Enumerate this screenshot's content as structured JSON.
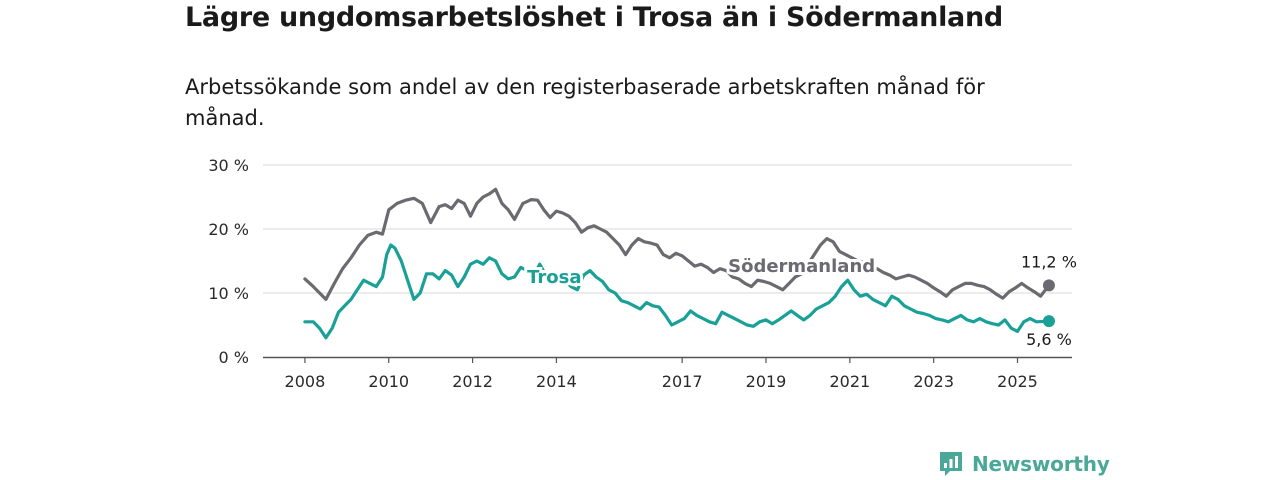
{
  "title": "Lägre ungdomsarbetslöshet i Trosa än i Södermanland",
  "subtitle": "Arbetssökande som andel av den registerbaserade arbetskraften månad för månad.",
  "brand": {
    "name": "Newsworthy",
    "color": "#4aa898"
  },
  "chart_data": {
    "type": "line",
    "title": "Lägre ungdomsarbetslöshet i Trosa än i Södermanland",
    "subtitle": "Arbetssökande som andel av den registerbaserade arbetskraften månad för månad.",
    "xlabel": "",
    "ylabel": "",
    "ylim": [
      0,
      30
    ],
    "xlim": [
      2007.0,
      2026.3
    ],
    "y_ticks": [
      0,
      10,
      20,
      30
    ],
    "y_tick_labels": [
      "0 %",
      "10 %",
      "20 %",
      "30 %"
    ],
    "x_ticks": [
      2008,
      2010,
      2012,
      2014,
      2017,
      2019,
      2021,
      2023,
      2025
    ],
    "x_tick_labels": [
      "2008",
      "2010",
      "2012",
      "2014",
      "2017",
      "2019",
      "2021",
      "2023",
      "2025"
    ],
    "grid": "horizontal",
    "legend": "inline labels",
    "series": [
      {
        "name": "Södermanland",
        "color": "#6b6a70",
        "end_label": "11,2 %",
        "x": [
          2008.0,
          2008.2,
          2008.5,
          2008.7,
          2008.9,
          2009.1,
          2009.3,
          2009.5,
          2009.7,
          2009.85,
          2010.0,
          2010.2,
          2010.4,
          2010.6,
          2010.8,
          2011.0,
          2011.2,
          2011.35,
          2011.5,
          2011.65,
          2011.8,
          2011.95,
          2012.1,
          2012.25,
          2012.4,
          2012.55,
          2012.7,
          2012.85,
          2013.0,
          2013.2,
          2013.4,
          2013.55,
          2013.7,
          2013.85,
          2014.0,
          2014.15,
          2014.3,
          2014.45,
          2014.6,
          2014.75,
          2014.9,
          2015.05,
          2015.2,
          2015.35,
          2015.5,
          2015.65,
          2015.8,
          2015.95,
          2016.1,
          2016.25,
          2016.4,
          2016.55,
          2016.7,
          2016.85,
          2017.0,
          2017.15,
          2017.3,
          2017.45,
          2017.6,
          2017.75,
          2017.9,
          2018.05,
          2018.2,
          2018.35,
          2018.5,
          2018.65,
          2018.8,
          2018.95,
          2019.1,
          2019.25,
          2019.4,
          2019.55,
          2019.7,
          2019.85,
          2020.0,
          2020.15,
          2020.3,
          2020.45,
          2020.6,
          2020.75,
          2020.9,
          2021.05,
          2021.2,
          2021.35,
          2021.5,
          2021.65,
          2021.8,
          2021.95,
          2022.1,
          2022.25,
          2022.4,
          2022.55,
          2022.7,
          2022.85,
          2023.0,
          2023.15,
          2023.3,
          2023.45,
          2023.6,
          2023.75,
          2023.9,
          2024.05,
          2024.2,
          2024.35,
          2024.5,
          2024.65,
          2024.8,
          2024.95,
          2025.1,
          2025.25,
          2025.4,
          2025.55,
          2025.75
        ],
        "y": [
          12.2,
          11.0,
          9.0,
          11.5,
          13.8,
          15.5,
          17.5,
          19.0,
          19.5,
          19.2,
          23.0,
          24.0,
          24.5,
          24.8,
          24.0,
          21.0,
          23.5,
          23.8,
          23.2,
          24.5,
          24.0,
          22.0,
          24.0,
          25.0,
          25.5,
          26.2,
          24.0,
          23.0,
          21.5,
          24.0,
          24.6,
          24.5,
          23.0,
          21.8,
          22.8,
          22.5,
          22.0,
          21.0,
          19.5,
          20.2,
          20.5,
          20.0,
          19.5,
          18.5,
          17.5,
          16.0,
          17.5,
          18.5,
          18.0,
          17.8,
          17.5,
          16.0,
          15.5,
          16.2,
          15.8,
          15.0,
          14.2,
          14.5,
          14.0,
          13.2,
          13.8,
          13.5,
          12.5,
          12.2,
          11.5,
          11.0,
          12.0,
          11.8,
          11.5,
          11.0,
          10.5,
          11.5,
          12.5,
          13.0,
          14.5,
          16.0,
          17.5,
          18.5,
          18.0,
          16.5,
          16.0,
          15.5,
          15.0,
          14.8,
          14.0,
          13.8,
          13.2,
          12.8,
          12.2,
          12.5,
          12.8,
          12.5,
          12.0,
          11.5,
          10.8,
          10.2,
          9.5,
          10.5,
          11.0,
          11.5,
          11.5,
          11.2,
          11.0,
          10.5,
          9.8,
          9.2,
          10.2,
          10.8,
          11.5,
          10.8,
          10.2,
          9.5,
          11.2
        ]
      },
      {
        "name": "Trosa",
        "color": "#19a097",
        "end_label": "5,6 %",
        "x": [
          2008.0,
          2008.2,
          2008.35,
          2008.5,
          2008.65,
          2008.8,
          2008.95,
          2009.1,
          2009.25,
          2009.4,
          2009.55,
          2009.7,
          2009.85,
          2009.95,
          2010.05,
          2010.15,
          2010.3,
          2010.45,
          2010.6,
          2010.75,
          2010.9,
          2011.05,
          2011.2,
          2011.35,
          2011.5,
          2011.65,
          2011.8,
          2011.95,
          2012.1,
          2012.25,
          2012.4,
          2012.55,
          2012.7,
          2012.85,
          2013.0,
          2013.15,
          2013.3,
          2013.45,
          2013.6,
          2013.75,
          2013.9,
          2014.05,
          2014.2,
          2014.35,
          2014.5,
          2014.65,
          2014.8,
          2014.95,
          2015.1,
          2015.25,
          2015.4,
          2015.55,
          2015.7,
          2015.85,
          2016.0,
          2016.15,
          2016.3,
          2016.45,
          2016.6,
          2016.75,
          2016.9,
          2017.05,
          2017.2,
          2017.35,
          2017.5,
          2017.65,
          2017.8,
          2017.95,
          2018.1,
          2018.25,
          2018.4,
          2018.55,
          2018.7,
          2018.85,
          2019.0,
          2019.15,
          2019.3,
          2019.45,
          2019.6,
          2019.75,
          2019.9,
          2020.05,
          2020.2,
          2020.35,
          2020.5,
          2020.65,
          2020.8,
          2020.95,
          2021.1,
          2021.25,
          2021.4,
          2021.55,
          2021.7,
          2021.85,
          2022.0,
          2022.15,
          2022.3,
          2022.45,
          2022.6,
          2022.75,
          2022.9,
          2023.05,
          2023.2,
          2023.35,
          2023.5,
          2023.65,
          2023.8,
          2023.95,
          2024.1,
          2024.25,
          2024.4,
          2024.55,
          2024.7,
          2024.85,
          2025.0,
          2025.15,
          2025.3,
          2025.45,
          2025.75
        ],
        "y": [
          5.5,
          5.5,
          4.5,
          3.0,
          4.5,
          7.0,
          8.0,
          9.0,
          10.5,
          12.0,
          11.5,
          11.0,
          12.5,
          16.0,
          17.5,
          17.0,
          15.0,
          12.0,
          9.0,
          10.0,
          13.0,
          13.0,
          12.2,
          13.5,
          12.8,
          11.0,
          12.5,
          14.5,
          15.0,
          14.5,
          15.5,
          15.0,
          13.0,
          12.2,
          12.5,
          14.0,
          13.5,
          12.5,
          14.5,
          12.8,
          13.0,
          12.5,
          12.0,
          11.0,
          10.5,
          12.8,
          13.5,
          12.5,
          11.8,
          10.5,
          10.0,
          8.8,
          8.5,
          8.0,
          7.5,
          8.5,
          8.0,
          7.8,
          6.5,
          5.0,
          5.5,
          6.0,
          7.2,
          6.5,
          6.0,
          5.5,
          5.2,
          7.0,
          6.5,
          6.0,
          5.5,
          5.0,
          4.8,
          5.5,
          5.8,
          5.2,
          5.8,
          6.5,
          7.2,
          6.5,
          5.8,
          6.5,
          7.5,
          8.0,
          8.5,
          9.5,
          11.0,
          12.0,
          10.5,
          9.5,
          9.8,
          9.0,
          8.5,
          8.0,
          9.5,
          9.0,
          8.0,
          7.5,
          7.0,
          6.8,
          6.5,
          6.0,
          5.8,
          5.5,
          6.0,
          6.5,
          5.8,
          5.5,
          6.0,
          5.5,
          5.2,
          5.0,
          5.8,
          4.5,
          4.0,
          5.5,
          6.0,
          5.5,
          5.6
        ]
      }
    ]
  }
}
